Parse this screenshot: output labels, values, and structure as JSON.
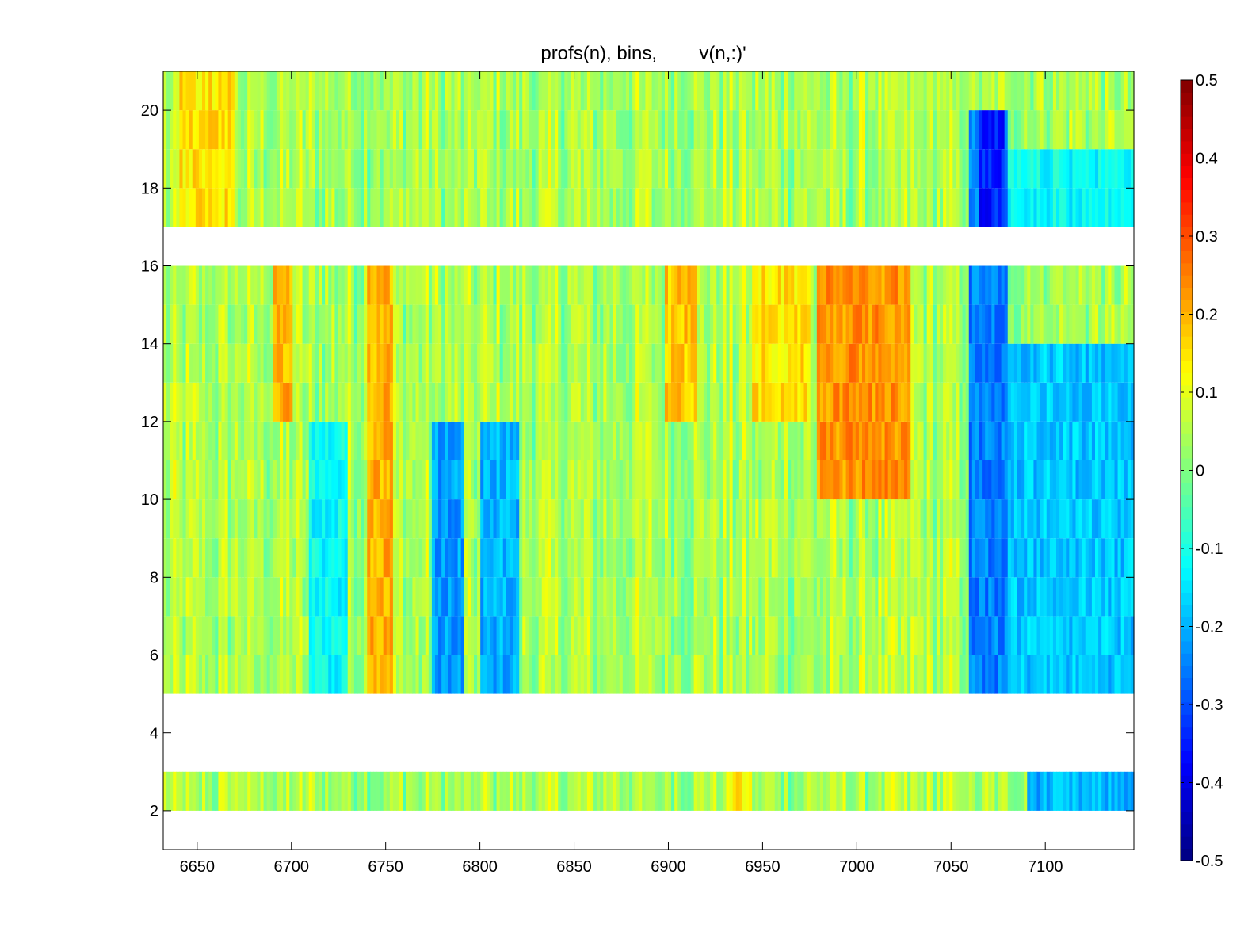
{
  "chart_data": {
    "type": "heatmap",
    "title": "profs(n), bins,        v(n,:)'",
    "xlabel": "",
    "ylabel": "",
    "xlim": [
      6632,
      7147
    ],
    "ylim": [
      1,
      21
    ],
    "x_ticks": [
      6650,
      6700,
      6750,
      6800,
      6850,
      6900,
      6950,
      7000,
      7050,
      7100
    ],
    "y_ticks": [
      2,
      4,
      6,
      8,
      10,
      12,
      14,
      16,
      18,
      20
    ],
    "x_tick_labels": [
      "6650",
      "6700",
      "6750",
      "6800",
      "6850",
      "6900",
      "6950",
      "7000",
      "7050",
      "7100"
    ],
    "y_tick_labels": [
      "2",
      "4",
      "6",
      "8",
      "10",
      "12",
      "14",
      "16",
      "18",
      "20"
    ],
    "rows_with_data": [
      2,
      5,
      6,
      7,
      8,
      9,
      10,
      11,
      12,
      13,
      14,
      15,
      17,
      18,
      19,
      20
    ],
    "rows_empty": [
      1,
      3,
      4,
      16
    ],
    "colormap": "jet",
    "clim": [
      -0.5,
      0.5
    ],
    "colorbar": {
      "ticks": [
        0.5,
        0.4,
        0.3,
        0.2,
        0.1,
        0,
        -0.1,
        -0.2,
        -0.3,
        -0.4,
        -0.5
      ],
      "tick_labels": [
        "0.5",
        "0.4",
        "0.3",
        "0.2",
        "0.1",
        "0",
        "-0.1",
        "-0.2",
        "-0.3",
        "-0.4",
        "-0.5"
      ],
      "position": "right"
    },
    "features": [
      {
        "x": [
          6978,
          7028
        ],
        "rows": [
          10,
          16
        ],
        "value": 0.23
      },
      {
        "x": [
          6690,
          6700
        ],
        "rows": [
          12,
          16
        ],
        "value": 0.2
      },
      {
        "x": [
          6740,
          6754
        ],
        "rows": [
          5,
          16
        ],
        "value": 0.2
      },
      {
        "x": [
          6898,
          6915
        ],
        "rows": [
          12,
          16
        ],
        "value": 0.18
      },
      {
        "x": [
          6945,
          6975
        ],
        "rows": [
          12,
          16
        ],
        "value": 0.15
      },
      {
        "x": [
          6775,
          6792
        ],
        "rows": [
          5,
          12
        ],
        "value": -0.22
      },
      {
        "x": [
          6800,
          6820
        ],
        "rows": [
          5,
          12
        ],
        "value": -0.2
      },
      {
        "x": [
          6710,
          6730
        ],
        "rows": [
          5,
          12
        ],
        "value": -0.12
      },
      {
        "x": [
          7060,
          7080
        ],
        "rows": [
          5,
          20
        ],
        "value": -0.25
      },
      {
        "x": [
          7080,
          7147
        ],
        "rows": [
          5,
          14
        ],
        "value": -0.18
      },
      {
        "x": [
          7080,
          7147
        ],
        "rows": [
          17,
          19
        ],
        "value": -0.12
      },
      {
        "x": [
          7065,
          7078
        ],
        "rows": [
          17,
          20
        ],
        "value": -0.35
      },
      {
        "x": [
          7090,
          7147
        ],
        "rows": [
          2,
          3
        ],
        "value": -0.2
      },
      {
        "x": [
          6930,
          6945
        ],
        "rows": [
          2,
          3
        ],
        "value": 0.15
      },
      {
        "x": [
          6640,
          6670
        ],
        "rows": [
          17,
          21
        ],
        "value": 0.15
      }
    ],
    "grid": false,
    "legend": "none"
  }
}
